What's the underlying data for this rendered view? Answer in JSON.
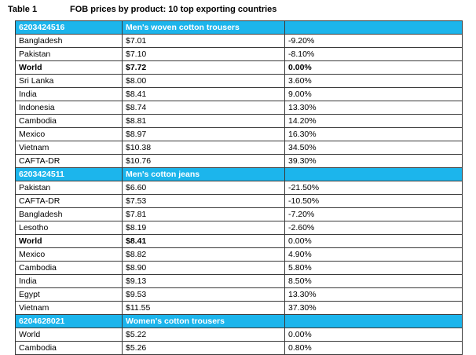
{
  "table": {
    "number": "Table 1",
    "title": "FOB prices by product: 10 top exporting countries",
    "sections": [
      {
        "code": "6203424516",
        "product": "Men's woven cotton trousers",
        "rows": [
          {
            "country": "Bangladesh",
            "price": "$7.01",
            "diff": "-9.20%",
            "bold": false
          },
          {
            "country": "Pakistan",
            "price": "$7.10",
            "diff": "-8.10%",
            "bold": false
          },
          {
            "country": "World",
            "price": "$7.72",
            "diff": "0.00%",
            "bold": true
          },
          {
            "country": "Sri Lanka",
            "price": "$8.00",
            "diff": "3.60%",
            "bold": false
          },
          {
            "country": "India",
            "price": "$8.41",
            "diff": "9.00%",
            "bold": false
          },
          {
            "country": "Indonesia",
            "price": "$8.74",
            "diff": "13.30%",
            "bold": false
          },
          {
            "country": "Cambodia",
            "price": "$8.81",
            "diff": "14.20%",
            "bold": false
          },
          {
            "country": "Mexico",
            "price": "$8.97",
            "diff": "16.30%",
            "bold": false
          },
          {
            "country": "Vietnam",
            "price": "$10.38",
            "diff": "34.50%",
            "bold": false
          },
          {
            "country": "CAFTA-DR",
            "price": "$10.76",
            "diff": "39.30%",
            "bold": false
          }
        ]
      },
      {
        "code": "6203424511",
        "product": "Men's cotton jeans",
        "rows": [
          {
            "country": "Pakistan",
            "price": "$6.60",
            "diff": "-21.50%",
            "bold": false
          },
          {
            "country": "CAFTA-DR",
            "price": "$7.53",
            "diff": "-10.50%",
            "bold": false
          },
          {
            "country": "Bangladesh",
            "price": "$7.81",
            "diff": "-7.20%",
            "bold": false
          },
          {
            "country": "Lesotho",
            "price": "$8.19",
            "diff": "-2.60%",
            "bold": false
          },
          {
            "country": "World",
            "price": "$8.41",
            "diff": "0.00%",
            "bold": true,
            "diff_bold": false
          },
          {
            "country": "Mexico",
            "price": "$8.82",
            "diff": "4.90%",
            "bold": false
          },
          {
            "country": "Cambodia",
            "price": "$8.90",
            "diff": "5.80%",
            "bold": false
          },
          {
            "country": "India",
            "price": "$9.13",
            "diff": "8.50%",
            "bold": false
          },
          {
            "country": "Egypt",
            "price": "$9.53",
            "diff": "13.30%",
            "bold": false
          },
          {
            "country": "Vietnam",
            "price": "$11.55",
            "diff": "37.30%",
            "bold": false
          }
        ]
      },
      {
        "code": "6204628021",
        "product": "Women's cotton trousers",
        "rows": [
          {
            "country": "World",
            "price": "$5.22",
            "diff": "0.00%",
            "bold": false
          },
          {
            "country": "Cambodia",
            "price": "$5.26",
            "diff": "0.80%",
            "bold": false
          }
        ]
      }
    ]
  },
  "colors": {
    "section_header_bg": "#1cb5ec",
    "section_header_text": "#ffffff",
    "border": "#3a3a3a"
  }
}
